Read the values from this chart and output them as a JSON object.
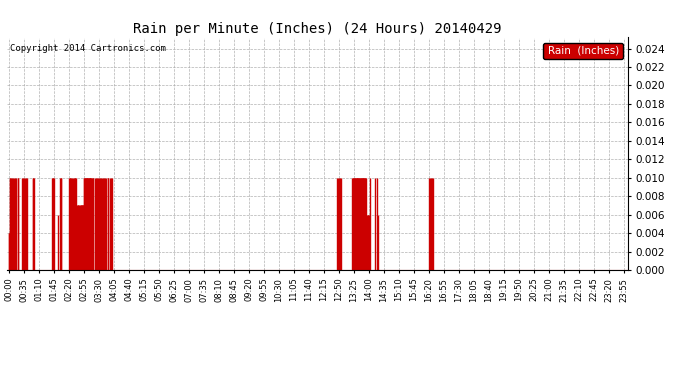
{
  "title": "Rain per Minute (Inches) (24 Hours) 20140429",
  "copyright": "Copyright 2014 Cartronics.com",
  "legend_label": "Rain  (Inches)",
  "legend_bg": "#cc0000",
  "legend_text_color": "#ffffff",
  "bar_color": "#cc0000",
  "bg_color": "#ffffff",
  "grid_color": "#aaaaaa",
  "ylim": [
    0.0,
    0.0252
  ],
  "yticks": [
    0.0,
    0.002,
    0.004,
    0.006,
    0.008,
    0.01,
    0.012,
    0.014,
    0.016,
    0.018,
    0.02,
    0.022,
    0.024
  ],
  "baseline_color": "#cc0000",
  "rain_events": [
    [
      0,
      0.004
    ],
    [
      1,
      0.004
    ],
    [
      2,
      0.01
    ],
    [
      3,
      0.01
    ],
    [
      5,
      0.01
    ],
    [
      7,
      0.01
    ],
    [
      10,
      0.01
    ],
    [
      12,
      0.01
    ],
    [
      15,
      0.01
    ],
    [
      17,
      0.01
    ],
    [
      20,
      0.01
    ],
    [
      22,
      0.01
    ],
    [
      30,
      0.01
    ],
    [
      32,
      0.01
    ],
    [
      35,
      0.01
    ],
    [
      37,
      0.01
    ],
    [
      40,
      0.01
    ],
    [
      42,
      0.01
    ],
    [
      55,
      0.01
    ],
    [
      57,
      0.01
    ],
    [
      58,
      0.01
    ],
    [
      100,
      0.01
    ],
    [
      102,
      0.01
    ],
    [
      103,
      0.01
    ],
    [
      105,
      0.01
    ],
    [
      115,
      0.006
    ],
    [
      120,
      0.01
    ],
    [
      121,
      0.01
    ],
    [
      122,
      0.01
    ],
    [
      140,
      0.01
    ],
    [
      142,
      0.01
    ],
    [
      143,
      0.01
    ],
    [
      145,
      0.01
    ],
    [
      147,
      0.01
    ],
    [
      150,
      0.01
    ],
    [
      152,
      0.01
    ],
    [
      153,
      0.01
    ],
    [
      155,
      0.01
    ],
    [
      157,
      0.01
    ],
    [
      159,
      0.007
    ],
    [
      160,
      0.007
    ],
    [
      161,
      0.007
    ],
    [
      163,
      0.007
    ],
    [
      165,
      0.007
    ],
    [
      167,
      0.007
    ],
    [
      169,
      0.007
    ],
    [
      170,
      0.007
    ],
    [
      171,
      0.007
    ],
    [
      172,
      0.007
    ],
    [
      173,
      0.007
    ],
    [
      174,
      0.007
    ],
    [
      175,
      0.01
    ],
    [
      176,
      0.01
    ],
    [
      177,
      0.01
    ],
    [
      178,
      0.01
    ],
    [
      179,
      0.01
    ],
    [
      180,
      0.01
    ],
    [
      181,
      0.01
    ],
    [
      182,
      0.01
    ],
    [
      183,
      0.01
    ],
    [
      184,
      0.01
    ],
    [
      185,
      0.01
    ],
    [
      186,
      0.01
    ],
    [
      187,
      0.01
    ],
    [
      188,
      0.01
    ],
    [
      189,
      0.01
    ],
    [
      190,
      0.01
    ],
    [
      191,
      0.01
    ],
    [
      192,
      0.01
    ],
    [
      193,
      0.01
    ],
    [
      195,
      0.01
    ],
    [
      197,
      0.01
    ],
    [
      200,
      0.01
    ],
    [
      202,
      0.01
    ],
    [
      205,
      0.01
    ],
    [
      207,
      0.01
    ],
    [
      210,
      0.01
    ],
    [
      212,
      0.01
    ],
    [
      215,
      0.01
    ],
    [
      217,
      0.01
    ],
    [
      220,
      0.01
    ],
    [
      222,
      0.01
    ],
    [
      225,
      0.01
    ],
    [
      227,
      0.01
    ],
    [
      230,
      0.01
    ],
    [
      232,
      0.01
    ],
    [
      235,
      0.01
    ],
    [
      237,
      0.01
    ],
    [
      240,
      0.01
    ],
    [
      765,
      0.01
    ],
    [
      768,
      0.01
    ],
    [
      770,
      0.01
    ],
    [
      772,
      0.01
    ],
    [
      775,
      0.01
    ],
    [
      800,
      0.01
    ],
    [
      802,
      0.01
    ],
    [
      803,
      0.01
    ],
    [
      805,
      0.01
    ],
    [
      806,
      0.01
    ],
    [
      807,
      0.01
    ],
    [
      808,
      0.01
    ],
    [
      809,
      0.01
    ],
    [
      810,
      0.01
    ],
    [
      811,
      0.01
    ],
    [
      812,
      0.01
    ],
    [
      813,
      0.01
    ],
    [
      814,
      0.01
    ],
    [
      815,
      0.01
    ],
    [
      816,
      0.01
    ],
    [
      817,
      0.01
    ],
    [
      818,
      0.01
    ],
    [
      820,
      0.01
    ],
    [
      821,
      0.01
    ],
    [
      822,
      0.01
    ],
    [
      823,
      0.01
    ],
    [
      824,
      0.01
    ],
    [
      825,
      0.01
    ],
    [
      826,
      0.01
    ],
    [
      827,
      0.01
    ],
    [
      828,
      0.01
    ],
    [
      829,
      0.01
    ],
    [
      830,
      0.01
    ],
    [
      831,
      0.01
    ],
    [
      832,
      0.01
    ],
    [
      834,
      0.006
    ],
    [
      835,
      0.006
    ],
    [
      837,
      0.006
    ],
    [
      838,
      0.006
    ],
    [
      840,
      0.006
    ],
    [
      842,
      0.01
    ],
    [
      855,
      0.01
    ],
    [
      858,
      0.01
    ],
    [
      860,
      0.006
    ],
    [
      980,
      0.01
    ],
    [
      982,
      0.01
    ],
    [
      985,
      0.01
    ],
    [
      988,
      0.01
    ],
    [
      990,
      0.01
    ]
  ],
  "x_tick_minutes": [
    0,
    35,
    70,
    105,
    140,
    175,
    210,
    245,
    280,
    315,
    350,
    385,
    420,
    455,
    490,
    525,
    560,
    595,
    630,
    665,
    700,
    735,
    770,
    805,
    840,
    875,
    910,
    945,
    980,
    1015,
    1050,
    1085,
    1120,
    1155,
    1190,
    1225,
    1260,
    1295,
    1330,
    1365,
    1400,
    1435
  ],
  "x_tick_labels": [
    "00:00",
    "00:35",
    "01:10",
    "01:45",
    "02:20",
    "02:55",
    "03:30",
    "04:05",
    "04:40",
    "05:15",
    "05:50",
    "06:25",
    "07:00",
    "07:35",
    "08:10",
    "08:45",
    "09:20",
    "09:55",
    "10:30",
    "11:05",
    "11:40",
    "12:15",
    "12:50",
    "13:25",
    "14:00",
    "14:35",
    "15:10",
    "15:45",
    "16:20",
    "16:55",
    "17:30",
    "18:05",
    "18:40",
    "19:15",
    "19:50",
    "20:25",
    "21:00",
    "21:35",
    "22:10",
    "22:45",
    "23:20",
    "23:55"
  ]
}
